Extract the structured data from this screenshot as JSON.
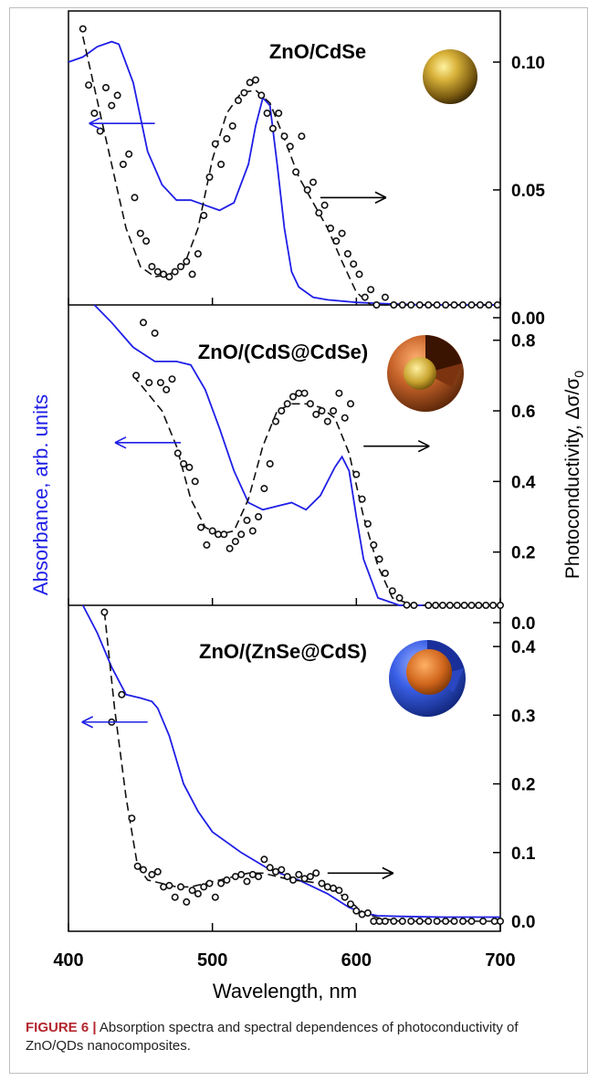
{
  "caption": {
    "label": "FIGURE 6 |",
    "text": " Absorption spectra and spectral dependences of photoconductivity of ZnO/QDs nanocomposites."
  },
  "chart_data": {
    "type": "line",
    "xlabel": "Wavelength, nm",
    "left_ylabel": "Absorbance, arb. units",
    "right_ylabel": "Photoconductivity, Δσ/σ",
    "right_ylabel_sub": "0",
    "x_range": [
      400,
      700
    ],
    "x_ticks": [
      400,
      500,
      600,
      700
    ],
    "colors": {
      "absorbance": "#1f1fe6",
      "photoconductivity": "#111111",
      "axis": "#000000"
    },
    "panels": [
      {
        "label": "ZnO/CdSe",
        "icon": "gold-sphere-icon",
        "y_range": [
          0,
          0.12
        ],
        "y_ticks": [
          "0.00",
          "0.05",
          "0.10"
        ],
        "y_tick_values": [
          0,
          0.05,
          0.1
        ],
        "absorbance": {
          "x": [
            400,
            410,
            420,
            430,
            435,
            445,
            455,
            465,
            475,
            485,
            495,
            505,
            515,
            525,
            530,
            535,
            540,
            545,
            550,
            555,
            560,
            570,
            580,
            600,
            620,
            650,
            700
          ],
          "y": [
            0.1,
            0.102,
            0.106,
            0.108,
            0.107,
            0.092,
            0.065,
            0.052,
            0.046,
            0.046,
            0.044,
            0.042,
            0.045,
            0.06,
            0.075,
            0.086,
            0.083,
            0.06,
            0.035,
            0.018,
            0.012,
            0.008,
            0.007,
            0.006,
            0.0055,
            0.005,
            0.004
          ]
        },
        "photoconductivity_fit": {
          "x": [
            410,
            420,
            430,
            440,
            450,
            460,
            470,
            480,
            490,
            500,
            510,
            520,
            530,
            540,
            550,
            560,
            570,
            580,
            590,
            600,
            610,
            620,
            640,
            660,
            700
          ],
          "y": [
            0.11,
            0.085,
            0.06,
            0.035,
            0.02,
            0.016,
            0.017,
            0.02,
            0.035,
            0.062,
            0.08,
            0.088,
            0.089,
            0.084,
            0.07,
            0.055,
            0.045,
            0.035,
            0.022,
            0.01,
            0.004,
            0.001,
            0.0,
            0.0,
            0.0
          ]
        },
        "photoconductivity_points": {
          "x": [
            410,
            414,
            418,
            422,
            426,
            430,
            434,
            438,
            442,
            446,
            450,
            454,
            458,
            462,
            466,
            470,
            474,
            478,
            482,
            486,
            490,
            494,
            498,
            502,
            506,
            510,
            514,
            518,
            522,
            526,
            530,
            534,
            538,
            542,
            546,
            550,
            554,
            558,
            562,
            566,
            570,
            574,
            578,
            582,
            586,
            590,
            594,
            598,
            602,
            606,
            610,
            614,
            620,
            626,
            632,
            638,
            644,
            650,
            656,
            662,
            668,
            674,
            680,
            686,
            692,
            698
          ],
          "y": [
            0.113,
            0.091,
            0.08,
            0.073,
            0.09,
            0.083,
            0.087,
            0.06,
            0.064,
            0.047,
            0.033,
            0.03,
            0.02,
            0.018,
            0.017,
            0.016,
            0.018,
            0.02,
            0.022,
            0.017,
            0.025,
            0.04,
            0.055,
            0.068,
            0.06,
            0.07,
            0.075,
            0.085,
            0.088,
            0.092,
            0.093,
            0.087,
            0.08,
            0.074,
            0.08,
            0.071,
            0.067,
            0.057,
            0.071,
            0.05,
            0.053,
            0.041,
            0.044,
            0.035,
            0.03,
            0.033,
            0.025,
            0.021,
            0.017,
            0.008,
            0.011,
            0.004,
            0.008,
            0.0,
            0.0,
            0.0,
            0.0,
            0.0,
            0.0,
            0.0,
            0.0,
            0.0,
            0.0,
            0.0,
            0.0,
            0.0
          ]
        },
        "arrows": [
          {
            "x": 460,
            "y": 0.076,
            "dir": "left"
          },
          {
            "x": 575,
            "y": 0.047,
            "dir": "right"
          }
        ]
      },
      {
        "label": "ZnO/(CdS@CdSe)",
        "icon": "core-shell-cds-cdse-icon",
        "y_range": [
          0,
          0.9
        ],
        "y_ticks": [
          "0.0",
          "0.2",
          "0.4",
          "0.6",
          "0.8"
        ],
        "y_tick_values": [
          0,
          0.2,
          0.4,
          0.6,
          0.8
        ],
        "absorbance": {
          "x": [
            418,
            430,
            445,
            460,
            475,
            485,
            495,
            505,
            515,
            525,
            535,
            545,
            555,
            565,
            575,
            585,
            590,
            595,
            600,
            605,
            615,
            630,
            660,
            700
          ],
          "y": [
            0.9,
            0.85,
            0.78,
            0.74,
            0.74,
            0.73,
            0.66,
            0.55,
            0.43,
            0.34,
            0.32,
            0.33,
            0.34,
            0.32,
            0.36,
            0.44,
            0.47,
            0.43,
            0.3,
            0.18,
            0.07,
            0.025,
            0.015,
            0.01
          ]
        },
        "photoconductivity_fit": {
          "x": [
            445,
            455,
            465,
            475,
            485,
            495,
            505,
            515,
            525,
            535,
            545,
            555,
            565,
            575,
            585,
            595,
            605,
            615,
            625,
            640,
            655,
            670,
            700
          ],
          "y": [
            0.7,
            0.65,
            0.6,
            0.5,
            0.35,
            0.27,
            0.25,
            0.26,
            0.35,
            0.5,
            0.6,
            0.62,
            0.62,
            0.61,
            0.58,
            0.48,
            0.3,
            0.16,
            0.07,
            0.03,
            0.01,
            0.01,
            0.01
          ]
        },
        "photoconductivity_points": {
          "x": [
            447,
            452,
            456,
            460,
            464,
            468,
            472,
            476,
            480,
            484,
            488,
            492,
            496,
            500,
            504,
            508,
            512,
            516,
            520,
            524,
            528,
            532,
            536,
            540,
            544,
            548,
            552,
            556,
            560,
            564,
            568,
            572,
            576,
            580,
            584,
            588,
            592,
            596,
            600,
            604,
            608,
            612,
            616,
            620,
            625,
            630,
            635,
            640,
            650,
            655,
            660,
            665,
            670,
            675,
            680,
            685,
            690,
            695,
            700
          ],
          "y": [
            0.7,
            0.85,
            0.68,
            0.82,
            0.68,
            0.66,
            0.69,
            0.48,
            0.45,
            0.44,
            0.4,
            0.27,
            0.22,
            0.26,
            0.25,
            0.25,
            0.21,
            0.23,
            0.25,
            0.29,
            0.26,
            0.3,
            0.38,
            0.45,
            0.57,
            0.6,
            0.62,
            0.64,
            0.65,
            0.65,
            0.62,
            0.59,
            0.6,
            0.57,
            0.6,
            0.65,
            0.58,
            0.62,
            0.42,
            0.35,
            0.28,
            0.22,
            0.18,
            0.14,
            0.09,
            0.07,
            0.05,
            0.04,
            0.02,
            0.01,
            0.0,
            0.01,
            0.0,
            0.02,
            0.02,
            0.0,
            0.01,
            0.0,
            0.04
          ]
        },
        "arrows": [
          {
            "x": 478,
            "y": 0.51,
            "dir": "left"
          },
          {
            "x": 605,
            "y": 0.5,
            "dir": "right"
          }
        ]
      },
      {
        "label": "ZnO/(ZnSe@CdS)",
        "icon": "core-shell-znse-cds-icon",
        "y_range": [
          0,
          0.46
        ],
        "y_ticks": [
          "0.0",
          "0.1",
          "0.2",
          "0.3",
          "0.4"
        ],
        "y_tick_values": [
          0,
          0.1,
          0.2,
          0.3,
          0.4
        ],
        "absorbance": {
          "x": [
            410,
            420,
            430,
            440,
            450,
            458,
            462,
            470,
            480,
            490,
            500,
            520,
            540,
            560,
            580,
            595,
            605,
            615,
            630,
            660,
            700
          ],
          "y": [
            0.46,
            0.42,
            0.37,
            0.33,
            0.325,
            0.32,
            0.31,
            0.27,
            0.2,
            0.16,
            0.13,
            0.1,
            0.075,
            0.06,
            0.04,
            0.02,
            0.012,
            0.008,
            0.007,
            0.006,
            0.006
          ]
        },
        "photoconductivity_fit": {
          "x": [
            425,
            432,
            440,
            448,
            455,
            465,
            475,
            485,
            495,
            505,
            515,
            525,
            535,
            545,
            555,
            565,
            575,
            585,
            595,
            605,
            615,
            630,
            660,
            700
          ],
          "y": [
            0.45,
            0.31,
            0.18,
            0.08,
            0.06,
            0.055,
            0.05,
            0.05,
            0.055,
            0.06,
            0.065,
            0.07,
            0.07,
            0.065,
            0.06,
            0.058,
            0.055,
            0.045,
            0.03,
            0.012,
            0.005,
            0.0,
            0.0,
            0.0
          ]
        },
        "photoconductivity_points": {
          "x": [
            425,
            430,
            437,
            444,
            448,
            452,
            458,
            462,
            466,
            470,
            474,
            478,
            482,
            486,
            490,
            494,
            498,
            502,
            506,
            510,
            516,
            520,
            524,
            528,
            532,
            536,
            540,
            544,
            548,
            552,
            556,
            560,
            564,
            568,
            572,
            576,
            580,
            584,
            588,
            592,
            596,
            600,
            604,
            608,
            612,
            616,
            620,
            626,
            632,
            638,
            644,
            650,
            656,
            662,
            668,
            674,
            680,
            688,
            696,
            700
          ],
          "y": [
            0.45,
            0.29,
            0.33,
            0.15,
            0.08,
            0.075,
            0.068,
            0.072,
            0.05,
            0.052,
            0.035,
            0.05,
            0.028,
            0.045,
            0.04,
            0.05,
            0.055,
            0.035,
            0.055,
            0.06,
            0.065,
            0.068,
            0.058,
            0.068,
            0.065,
            0.09,
            0.078,
            0.072,
            0.075,
            0.065,
            0.06,
            0.068,
            0.062,
            0.065,
            0.07,
            0.055,
            0.05,
            0.048,
            0.045,
            0.035,
            0.025,
            0.015,
            0.01,
            0.012,
            0.0,
            0.0,
            0.0,
            0.0,
            0.0,
            0.0,
            0.0,
            0.0,
            0.0,
            0.0,
            0.0,
            0.0,
            0.0,
            0.0,
            0.0,
            0.0
          ]
        },
        "arrows": [
          {
            "x": 455,
            "y": 0.29,
            "dir": "left"
          },
          {
            "x": 580,
            "y": 0.07,
            "dir": "right"
          }
        ]
      }
    ]
  }
}
